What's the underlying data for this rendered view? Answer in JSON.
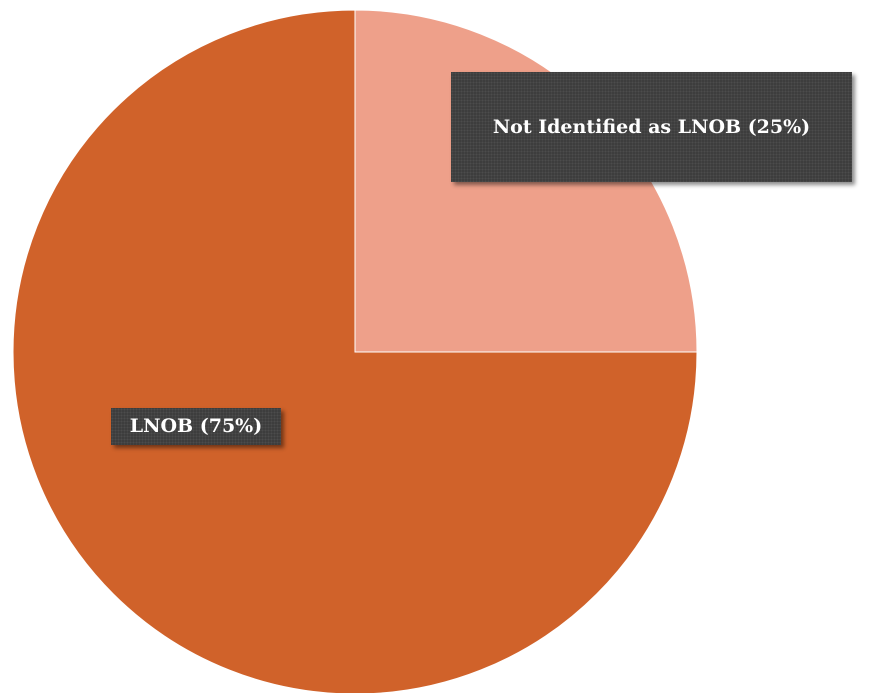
{
  "chart_data": {
    "type": "pie",
    "title": "",
    "slices": [
      {
        "label": "LNOB (75%)",
        "value": 75,
        "color": "#d0622a"
      },
      {
        "label": "Not Identified as LNOB (25%)",
        "value": 25,
        "color": "#eea08a"
      }
    ],
    "start_angle": "12 o'clock",
    "direction": "counterclockwise",
    "legend": "none"
  }
}
